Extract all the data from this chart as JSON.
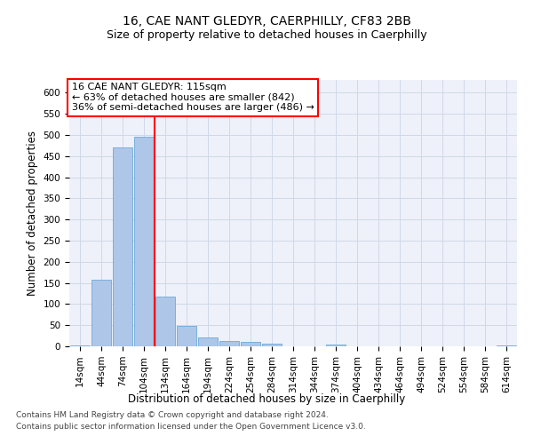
{
  "title1": "16, CAE NANT GLEDYR, CAERPHILLY, CF83 2BB",
  "title2": "Size of property relative to detached houses in Caerphilly",
  "xlabel": "Distribution of detached houses by size in Caerphilly",
  "ylabel": "Number of detached properties",
  "footer1": "Contains HM Land Registry data © Crown copyright and database right 2024.",
  "footer2": "Contains public sector information licensed under the Open Government Licence v3.0.",
  "annotation_line1": "16 CAE NANT GLEDYR: 115sqm",
  "annotation_line2": "← 63% of detached houses are smaller (842)",
  "annotation_line3": "36% of semi-detached houses are larger (486) →",
  "bar_categories": [
    "14sqm",
    "44sqm",
    "74sqm",
    "104sqm",
    "134sqm",
    "164sqm",
    "194sqm",
    "224sqm",
    "254sqm",
    "284sqm",
    "314sqm",
    "344sqm",
    "374sqm",
    "404sqm",
    "434sqm",
    "464sqm",
    "494sqm",
    "524sqm",
    "554sqm",
    "584sqm",
    "614sqm"
  ],
  "bar_values": [
    3,
    158,
    470,
    496,
    117,
    48,
    22,
    12,
    11,
    7,
    0,
    0,
    4,
    0,
    0,
    0,
    0,
    0,
    0,
    0,
    3
  ],
  "bar_color": "#aec6e8",
  "bar_edgecolor": "#5a9fd4",
  "vline_color": "red",
  "ylim": [
    0,
    630
  ],
  "yticks": [
    0,
    50,
    100,
    150,
    200,
    250,
    300,
    350,
    400,
    450,
    500,
    550,
    600
  ],
  "grid_color": "#d0d8e8",
  "bg_color": "#eef1f9",
  "title_fontsize": 10,
  "subtitle_fontsize": 9,
  "axis_label_fontsize": 8.5,
  "tick_fontsize": 7.5,
  "footer_fontsize": 6.5,
  "annotation_fontsize": 8
}
